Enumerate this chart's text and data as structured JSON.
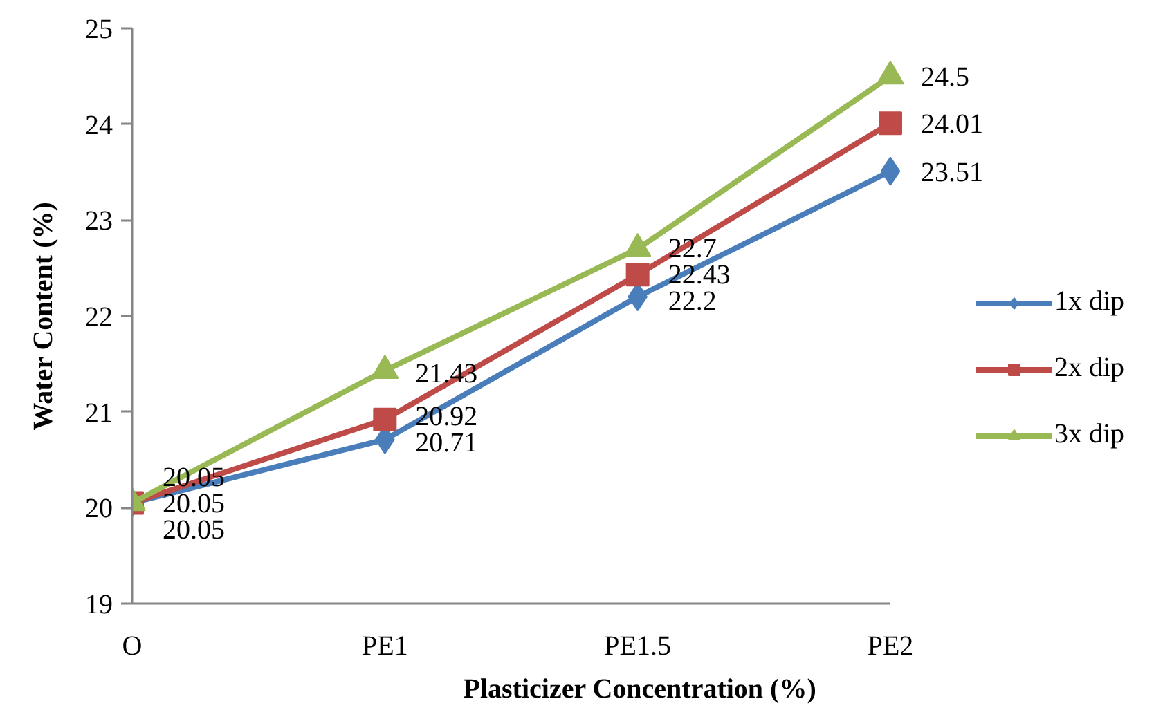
{
  "chart_data": {
    "type": "line",
    "xlabel": "Plasticizer Concentration (%)",
    "ylabel": "Water Content (%)",
    "categories": [
      "O",
      "PE1",
      "PE1.5",
      "PE2"
    ],
    "ylim": [
      19,
      25
    ],
    "yticks": [
      19,
      20,
      21,
      22,
      23,
      24,
      25
    ],
    "grid": false,
    "legend": "right",
    "data_labels": true,
    "line_style": "solid",
    "series": [
      {
        "name": "1x dip",
        "color": "#4a7ebb",
        "marker": "diamond",
        "values": [
          20.05,
          20.71,
          22.2,
          23.51
        ]
      },
      {
        "name": "2x dip",
        "color": "#be4b48",
        "marker": "square",
        "values": [
          20.05,
          20.92,
          22.43,
          24.01
        ]
      },
      {
        "name": "3x dip",
        "color": "#98b954",
        "marker": "triangle",
        "values": [
          20.05,
          21.43,
          22.7,
          24.5
        ]
      }
    ]
  }
}
